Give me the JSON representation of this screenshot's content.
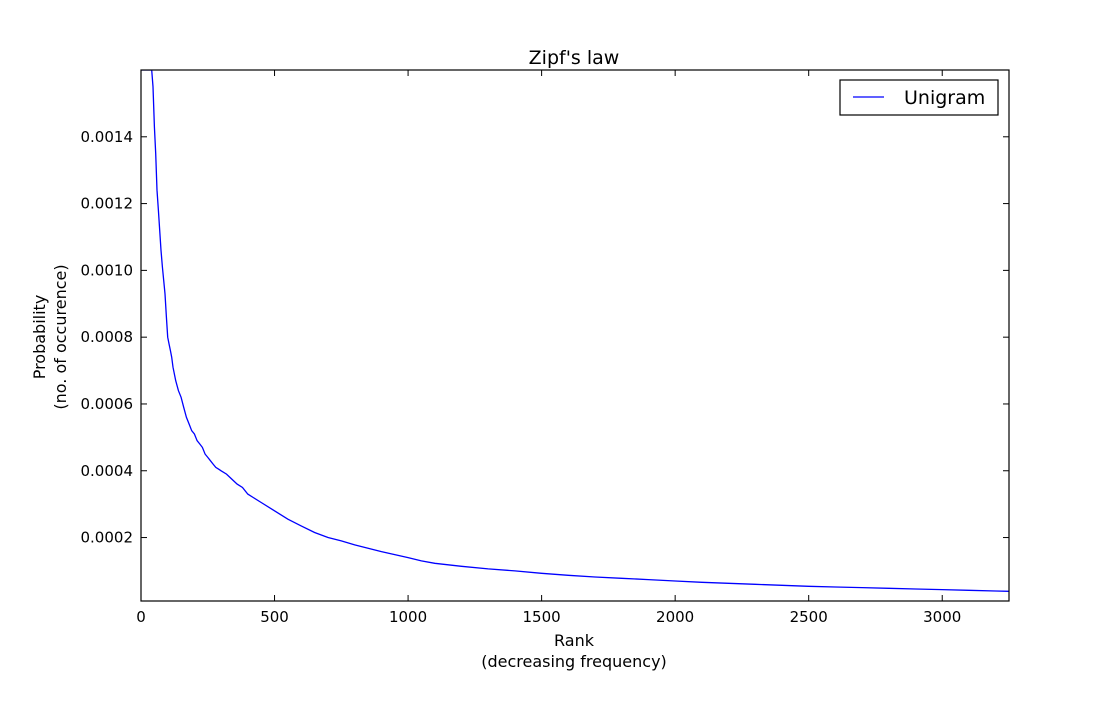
{
  "chart_data": {
    "type": "line",
    "title": "Zipf's law",
    "xlabel_lines": [
      "Rank",
      "(decreasing frequency)"
    ],
    "ylabel_lines": [
      "Probability",
      "(no. of occurence)"
    ],
    "xlim": [
      0,
      3250
    ],
    "ylim": [
      1e-05,
      0.0016
    ],
    "x_ticks": [
      0,
      500,
      1000,
      1500,
      2000,
      2500,
      3000
    ],
    "x_tick_labels": [
      "0",
      "500",
      "1000",
      "1500",
      "2000",
      "2500",
      "3000"
    ],
    "y_ticks": [
      0.0002,
      0.0004,
      0.0006,
      0.0008,
      0.001,
      0.0012,
      0.0014
    ],
    "y_tick_labels": [
      "0.0002",
      "0.0004",
      "0.0006",
      "0.0008",
      "0.0010",
      "0.0012",
      "0.0014"
    ],
    "legend_position": "top-right",
    "grid": false,
    "series": [
      {
        "name": "Unigram",
        "color": "#0000ff",
        "x": [
          0,
          40,
          45,
          50,
          55,
          60,
          65,
          70,
          75,
          80,
          85,
          90,
          95,
          100,
          105,
          110,
          115,
          120,
          130,
          140,
          150,
          160,
          170,
          180,
          190,
          200,
          210,
          220,
          230,
          240,
          250,
          260,
          270,
          280,
          290,
          300,
          320,
          340,
          360,
          380,
          400,
          420,
          450,
          500,
          550,
          600,
          650,
          700,
          750,
          800,
          900,
          1000,
          1050,
          1100,
          1200,
          1300,
          1400,
          1500,
          1600,
          1700,
          1800,
          1900,
          2000,
          2100,
          2200,
          2300,
          2400,
          2500,
          2600,
          2700,
          2800,
          2900,
          3000,
          3100,
          3200,
          3250
        ],
        "y": [
          0.0016,
          0.0016,
          0.00155,
          0.00143,
          0.00135,
          0.00124,
          0.00118,
          0.00112,
          0.00106,
          0.00101,
          0.00097,
          0.00093,
          0.00086,
          0.0008,
          0.00078,
          0.00076,
          0.00074,
          0.00071,
          0.00067,
          0.00064,
          0.00062,
          0.00059,
          0.00056,
          0.00054,
          0.00052,
          0.00051,
          0.00049,
          0.00048,
          0.00047,
          0.00045,
          0.00044,
          0.00043,
          0.00042,
          0.00041,
          0.000405,
          0.0004,
          0.00039,
          0.000375,
          0.00036,
          0.00035,
          0.00033,
          0.00032,
          0.000305,
          0.00028,
          0.000255,
          0.000235,
          0.000215,
          0.0002,
          0.00019,
          0.000178,
          0.000158,
          0.00014,
          0.00013,
          0.000123,
          0.000114,
          0.000106,
          0.0001,
          9.3e-05,
          8.7e-05,
          8.2e-05,
          7.8e-05,
          7.4e-05,
          7e-05,
          6.6e-05,
          6.3e-05,
          6e-05,
          5.7e-05,
          5.4e-05,
          5.2e-05,
          5e-05,
          4.8e-05,
          4.6e-05,
          4.4e-05,
          4.2e-05,
          4e-05,
          3.9e-05
        ]
      }
    ]
  }
}
